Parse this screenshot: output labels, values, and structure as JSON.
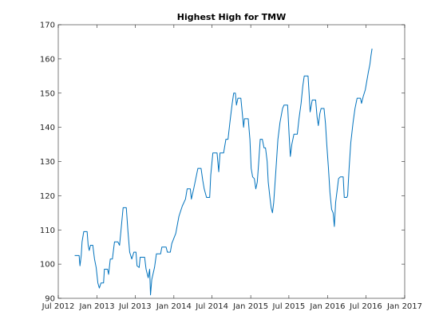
{
  "chart_data": {
    "type": "line",
    "title": "Highest High for TMW",
    "xlabel": "",
    "ylabel": "",
    "xlim": [
      "2012-07-01",
      "2017-01-01"
    ],
    "ylim": [
      90,
      170
    ],
    "x_ticks": [
      {
        "date": "2012-07-01",
        "label": "Jul 2012"
      },
      {
        "date": "2013-01-01",
        "label": "Jan 2013"
      },
      {
        "date": "2013-07-01",
        "label": "Jul 2013"
      },
      {
        "date": "2014-01-01",
        "label": "Jan 2014"
      },
      {
        "date": "2014-07-01",
        "label": "Jul 2014"
      },
      {
        "date": "2015-01-01",
        "label": "Jan 2015"
      },
      {
        "date": "2015-07-01",
        "label": "Jul 2015"
      },
      {
        "date": "2016-01-01",
        "label": "Jan 2016"
      },
      {
        "date": "2016-07-01",
        "label": "Jul 2016"
      },
      {
        "date": "2017-01-01",
        "label": "Jan 2017"
      }
    ],
    "y_ticks": [
      {
        "value": 90,
        "label": "90"
      },
      {
        "value": 100,
        "label": "100"
      },
      {
        "value": 110,
        "label": "110"
      },
      {
        "value": 120,
        "label": "120"
      },
      {
        "value": 130,
        "label": "130"
      },
      {
        "value": 140,
        "label": "140"
      },
      {
        "value": 150,
        "label": "150"
      },
      {
        "value": 160,
        "label": "160"
      },
      {
        "value": 170,
        "label": "170"
      }
    ],
    "grid": false,
    "legend": "none",
    "series": [
      {
        "color": "#0072bd",
        "points": [
          [
            "2012-09-17",
            102.5
          ],
          [
            "2012-10-08",
            102.5
          ],
          [
            "2012-10-12",
            99.5
          ],
          [
            "2012-10-18",
            102.5
          ],
          [
            "2012-10-22",
            106.5
          ],
          [
            "2012-10-30",
            109.5
          ],
          [
            "2012-11-15",
            109.5
          ],
          [
            "2012-11-20",
            105.5
          ],
          [
            "2012-11-25",
            104.0
          ],
          [
            "2012-12-01",
            105.5
          ],
          [
            "2012-12-12",
            105.5
          ],
          [
            "2012-12-20",
            101.5
          ],
          [
            "2012-12-28",
            99.0
          ],
          [
            "2013-01-05",
            94.5
          ],
          [
            "2013-01-12",
            93.0
          ],
          [
            "2013-01-20",
            94.5
          ],
          [
            "2013-02-01",
            94.5
          ],
          [
            "2013-02-05",
            98.5
          ],
          [
            "2013-02-20",
            98.5
          ],
          [
            "2013-02-25",
            97.0
          ],
          [
            "2013-03-05",
            101.5
          ],
          [
            "2013-03-15",
            101.5
          ],
          [
            "2013-03-25",
            106.5
          ],
          [
            "2013-04-10",
            106.5
          ],
          [
            "2013-04-18",
            105.5
          ],
          [
            "2013-04-25",
            110.0
          ],
          [
            "2013-05-05",
            116.5
          ],
          [
            "2013-05-20",
            116.5
          ],
          [
            "2013-05-28",
            109.5
          ],
          [
            "2013-06-05",
            103.5
          ],
          [
            "2013-06-15",
            101.5
          ],
          [
            "2013-06-25",
            103.5
          ],
          [
            "2013-07-05",
            103.5
          ],
          [
            "2013-07-10",
            99.5
          ],
          [
            "2013-07-20",
            99.0
          ],
          [
            "2013-07-25",
            102.0
          ],
          [
            "2013-08-15",
            102.0
          ],
          [
            "2013-08-22",
            98.5
          ],
          [
            "2013-09-01",
            96.0
          ],
          [
            "2013-09-08",
            98.5
          ],
          [
            "2013-09-12",
            91.0
          ],
          [
            "2013-09-18",
            95.5
          ],
          [
            "2013-10-01",
            99.0
          ],
          [
            "2013-10-10",
            103.0
          ],
          [
            "2013-10-30",
            103.0
          ],
          [
            "2013-11-05",
            105.0
          ],
          [
            "2013-11-25",
            105.0
          ],
          [
            "2013-12-01",
            103.5
          ],
          [
            "2013-12-15",
            103.5
          ],
          [
            "2013-12-22",
            106.0
          ],
          [
            "2014-01-10",
            109.0
          ],
          [
            "2014-01-25",
            114.0
          ],
          [
            "2014-02-10",
            117.0
          ],
          [
            "2014-02-25",
            119.0
          ],
          [
            "2014-03-05",
            122.0
          ],
          [
            "2014-03-20",
            122.0
          ],
          [
            "2014-03-25",
            119.0
          ],
          [
            "2014-04-05",
            122.0
          ],
          [
            "2014-04-15",
            125.0
          ],
          [
            "2014-04-25",
            128.0
          ],
          [
            "2014-05-10",
            128.0
          ],
          [
            "2014-05-18",
            124.5
          ],
          [
            "2014-05-25",
            122.0
          ],
          [
            "2014-06-05",
            119.5
          ],
          [
            "2014-06-20",
            119.5
          ],
          [
            "2014-06-25",
            126.0
          ],
          [
            "2014-07-05",
            132.5
          ],
          [
            "2014-07-25",
            132.5
          ],
          [
            "2014-08-02",
            127.0
          ],
          [
            "2014-08-08",
            132.5
          ],
          [
            "2014-08-25",
            132.5
          ],
          [
            "2014-09-05",
            136.5
          ],
          [
            "2014-09-15",
            136.5
          ],
          [
            "2014-09-25",
            142.0
          ],
          [
            "2014-10-05",
            147.0
          ],
          [
            "2014-10-12",
            150.0
          ],
          [
            "2014-10-20",
            150.0
          ],
          [
            "2014-10-25",
            146.5
          ],
          [
            "2014-11-01",
            148.5
          ],
          [
            "2014-11-15",
            148.5
          ],
          [
            "2014-11-22",
            144.0
          ],
          [
            "2014-11-28",
            140.0
          ],
          [
            "2014-12-02",
            142.5
          ],
          [
            "2014-12-20",
            142.5
          ],
          [
            "2014-12-28",
            136.5
          ],
          [
            "2015-01-03",
            128.0
          ],
          [
            "2015-01-10",
            125.5
          ],
          [
            "2015-01-18",
            125.0
          ],
          [
            "2015-01-25",
            122.0
          ],
          [
            "2015-02-01",
            124.0
          ],
          [
            "2015-02-08",
            130.0
          ],
          [
            "2015-02-15",
            136.5
          ],
          [
            "2015-02-25",
            136.5
          ],
          [
            "2015-03-05",
            134.0
          ],
          [
            "2015-03-12",
            134.0
          ],
          [
            "2015-03-20",
            130.0
          ],
          [
            "2015-03-25",
            124.0
          ],
          [
            "2015-04-02",
            119.5
          ],
          [
            "2015-04-08",
            116.5
          ],
          [
            "2015-04-14",
            115.0
          ],
          [
            "2015-04-20",
            118.0
          ],
          [
            "2015-05-01",
            128.0
          ],
          [
            "2015-05-10",
            136.5
          ],
          [
            "2015-05-20",
            141.5
          ],
          [
            "2015-06-01",
            145.5
          ],
          [
            "2015-06-08",
            146.5
          ],
          [
            "2015-06-25",
            146.5
          ],
          [
            "2015-07-02",
            138.0
          ],
          [
            "2015-07-08",
            131.5
          ],
          [
            "2015-07-15",
            135.0
          ],
          [
            "2015-07-25",
            138.0
          ],
          [
            "2015-08-10",
            138.0
          ],
          [
            "2015-08-18",
            142.5
          ],
          [
            "2015-08-28",
            147.0
          ],
          [
            "2015-09-05",
            152.0
          ],
          [
            "2015-09-12",
            155.0
          ],
          [
            "2015-09-30",
            155.0
          ],
          [
            "2015-10-05",
            150.0
          ],
          [
            "2015-10-10",
            144.5
          ],
          [
            "2015-10-20",
            148.0
          ],
          [
            "2015-11-05",
            148.0
          ],
          [
            "2015-11-12",
            143.0
          ],
          [
            "2015-11-18",
            140.5
          ],
          [
            "2015-11-25",
            144.0
          ],
          [
            "2015-12-01",
            145.5
          ],
          [
            "2015-12-15",
            145.5
          ],
          [
            "2015-12-22",
            141.0
          ],
          [
            "2015-12-28",
            135.0
          ],
          [
            "2016-01-05",
            128.0
          ],
          [
            "2016-01-12",
            121.0
          ],
          [
            "2016-01-20",
            116.0
          ],
          [
            "2016-01-27",
            115.0
          ],
          [
            "2016-02-02",
            111.0
          ],
          [
            "2016-02-08",
            118.0
          ],
          [
            "2016-02-15",
            121.5
          ],
          [
            "2016-02-22",
            125.0
          ],
          [
            "2016-03-01",
            125.5
          ],
          [
            "2016-03-15",
            125.5
          ],
          [
            "2016-03-20",
            119.5
          ],
          [
            "2016-04-01",
            119.5
          ],
          [
            "2016-04-05",
            120.0
          ],
          [
            "2016-04-12",
            128.0
          ],
          [
            "2016-04-20",
            135.5
          ],
          [
            "2016-05-01",
            141.5
          ],
          [
            "2016-05-10",
            145.5
          ],
          [
            "2016-05-20",
            148.5
          ],
          [
            "2016-06-05",
            148.5
          ],
          [
            "2016-06-10",
            147.0
          ],
          [
            "2016-06-18",
            149.0
          ],
          [
            "2016-06-28",
            151.0
          ],
          [
            "2016-07-05",
            153.5
          ],
          [
            "2016-07-12",
            156.0
          ],
          [
            "2016-07-20",
            158.5
          ],
          [
            "2016-07-25",
            161.0
          ],
          [
            "2016-07-30",
            163.0
          ]
        ]
      }
    ]
  }
}
